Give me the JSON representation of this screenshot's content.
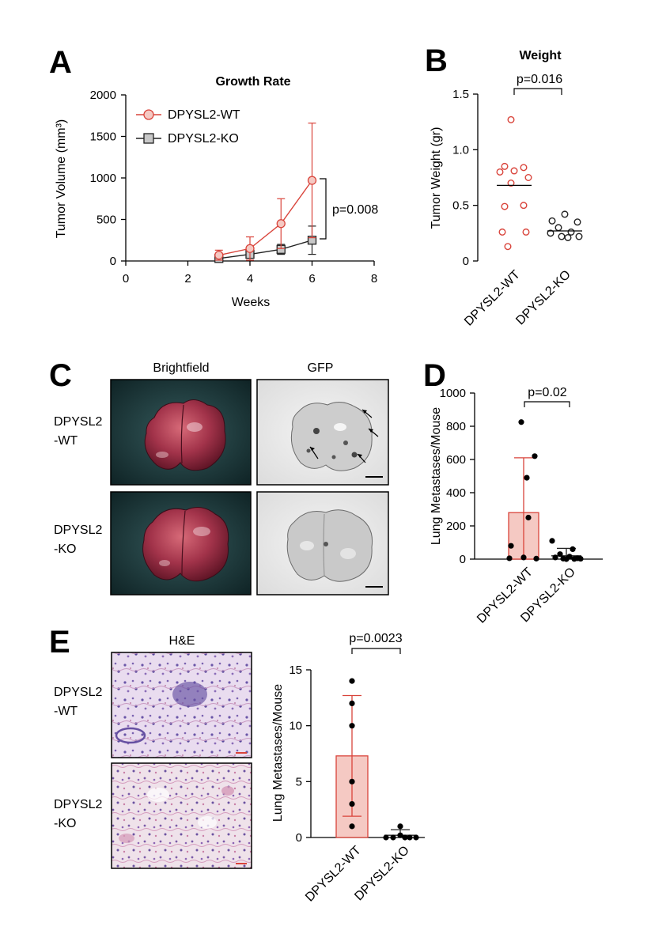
{
  "colors": {
    "wt": "#d9443b",
    "wt_fill": "#f5c9c3",
    "ko": "#222222",
    "ko_fill": "#c8c8c8"
  },
  "panels": {
    "a": "A",
    "b": "B",
    "c": "C",
    "d": "D",
    "e": "E"
  },
  "panelC": {
    "col1": "Brightfield",
    "col2": "GFP",
    "row1_l1": "DPYSL2",
    "row1_l2": "-WT",
    "row2_l1": "DPYSL2",
    "row2_l2": "-KO"
  },
  "panelE": {
    "col1": "H&E",
    "row1_l1": "DPYSL2",
    "row1_l2": "-WT",
    "row2_l1": "DPYSL2",
    "row2_l2": "-KO"
  },
  "chart_data": [
    {
      "id": "A",
      "type": "line",
      "title": "Growth Rate",
      "xlabel": "Weeks",
      "ylabel": "Tumor Volume (mm³)",
      "xlim": [
        0,
        8
      ],
      "ylim": [
        0,
        2000
      ],
      "xticks": [
        0,
        2,
        4,
        6,
        8
      ],
      "yticks": [
        0,
        500,
        1000,
        1500,
        2000
      ],
      "annotation": "p=0.008",
      "series": [
        {
          "name": "DPYSL2-WT",
          "x": [
            3,
            4,
            5,
            6
          ],
          "y": [
            70,
            150,
            450,
            970
          ],
          "err": [
            60,
            140,
            300,
            690
          ]
        },
        {
          "name": "DPYSL2-KO",
          "x": [
            3,
            4,
            5,
            6
          ],
          "y": [
            30,
            80,
            140,
            250
          ],
          "err": [
            25,
            40,
            60,
            170
          ]
        }
      ]
    },
    {
      "id": "B",
      "type": "scatter",
      "title": "Weight",
      "ylabel": "Tumor Weight (gr)",
      "categories": [
        "DPYSL2-WT",
        "DPYSL2-KO"
      ],
      "ylim": [
        0,
        1.5
      ],
      "yticks": [
        "0",
        "0.5",
        "1.0",
        "1.5"
      ],
      "annotation": "p=0.016",
      "groups": [
        {
          "points": [
            1.27,
            0.85,
            0.84,
            0.81,
            0.8,
            0.75,
            0.7,
            0.5,
            0.49,
            0.26,
            0.26,
            0.13
          ],
          "mean": 0.68
        },
        {
          "points": [
            0.42,
            0.36,
            0.35,
            0.3,
            0.26,
            0.25,
            0.22,
            0.22,
            0.21
          ],
          "mean": 0.27
        }
      ]
    },
    {
      "id": "D",
      "type": "bar",
      "ylabel": "Lung Metastases/Mouse",
      "categories": [
        "DPYSL2-WT",
        "DPYSL2-KO"
      ],
      "ylim": [
        0,
        1000
      ],
      "yticks": [
        0,
        200,
        400,
        600,
        800,
        1000
      ],
      "annotation": "p=0.02",
      "values": [
        280,
        20
      ],
      "err": [
        330,
        45
      ],
      "points": [
        [
          825,
          620,
          490,
          250,
          80,
          10,
          5,
          3
        ],
        [
          110,
          60,
          30,
          15,
          10,
          5,
          3,
          2,
          1,
          0
        ]
      ]
    },
    {
      "id": "E",
      "type": "bar",
      "ylabel": "Lung Metastases/Mouse",
      "categories": [
        "DPYSL2-WT",
        "DPYSL2-KO"
      ],
      "ylim": [
        0,
        15
      ],
      "yticks": [
        0,
        5,
        10,
        15
      ],
      "annotation": "p=0.0023",
      "values": [
        7.3,
        0.2
      ],
      "err": [
        5.4,
        0.5
      ],
      "points": [
        [
          14,
          12,
          10,
          5,
          3,
          1
        ],
        [
          1,
          0.2,
          0,
          0,
          0,
          0,
          0
        ]
      ]
    }
  ]
}
